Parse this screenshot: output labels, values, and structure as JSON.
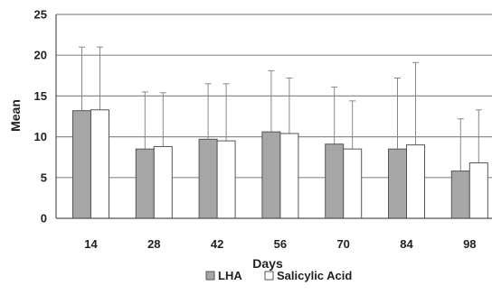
{
  "chart_data": {
    "type": "bar",
    "xlabel": "Days",
    "ylabel": "Mean",
    "ylim": [
      0,
      25
    ],
    "yticks": [
      0,
      5,
      10,
      15,
      20,
      25
    ],
    "grid": true,
    "legend_position": "bottom",
    "categories": [
      "14",
      "28",
      "42",
      "56",
      "70",
      "84",
      "98"
    ],
    "series": [
      {
        "name": "LHA",
        "color": "#a6a6a6",
        "values": [
          13.2,
          8.5,
          9.7,
          10.6,
          9.1,
          8.5,
          5.8
        ],
        "error_upper": [
          21.0,
          15.5,
          16.5,
          18.1,
          16.1,
          17.2,
          12.2
        ]
      },
      {
        "name": "Salicylic Acid",
        "color": "#ffffff",
        "values": [
          13.3,
          8.8,
          9.5,
          10.4,
          8.5,
          9.0,
          6.8
        ],
        "error_upper": [
          21.0,
          15.4,
          16.5,
          17.2,
          14.4,
          19.1,
          13.3
        ]
      }
    ]
  }
}
